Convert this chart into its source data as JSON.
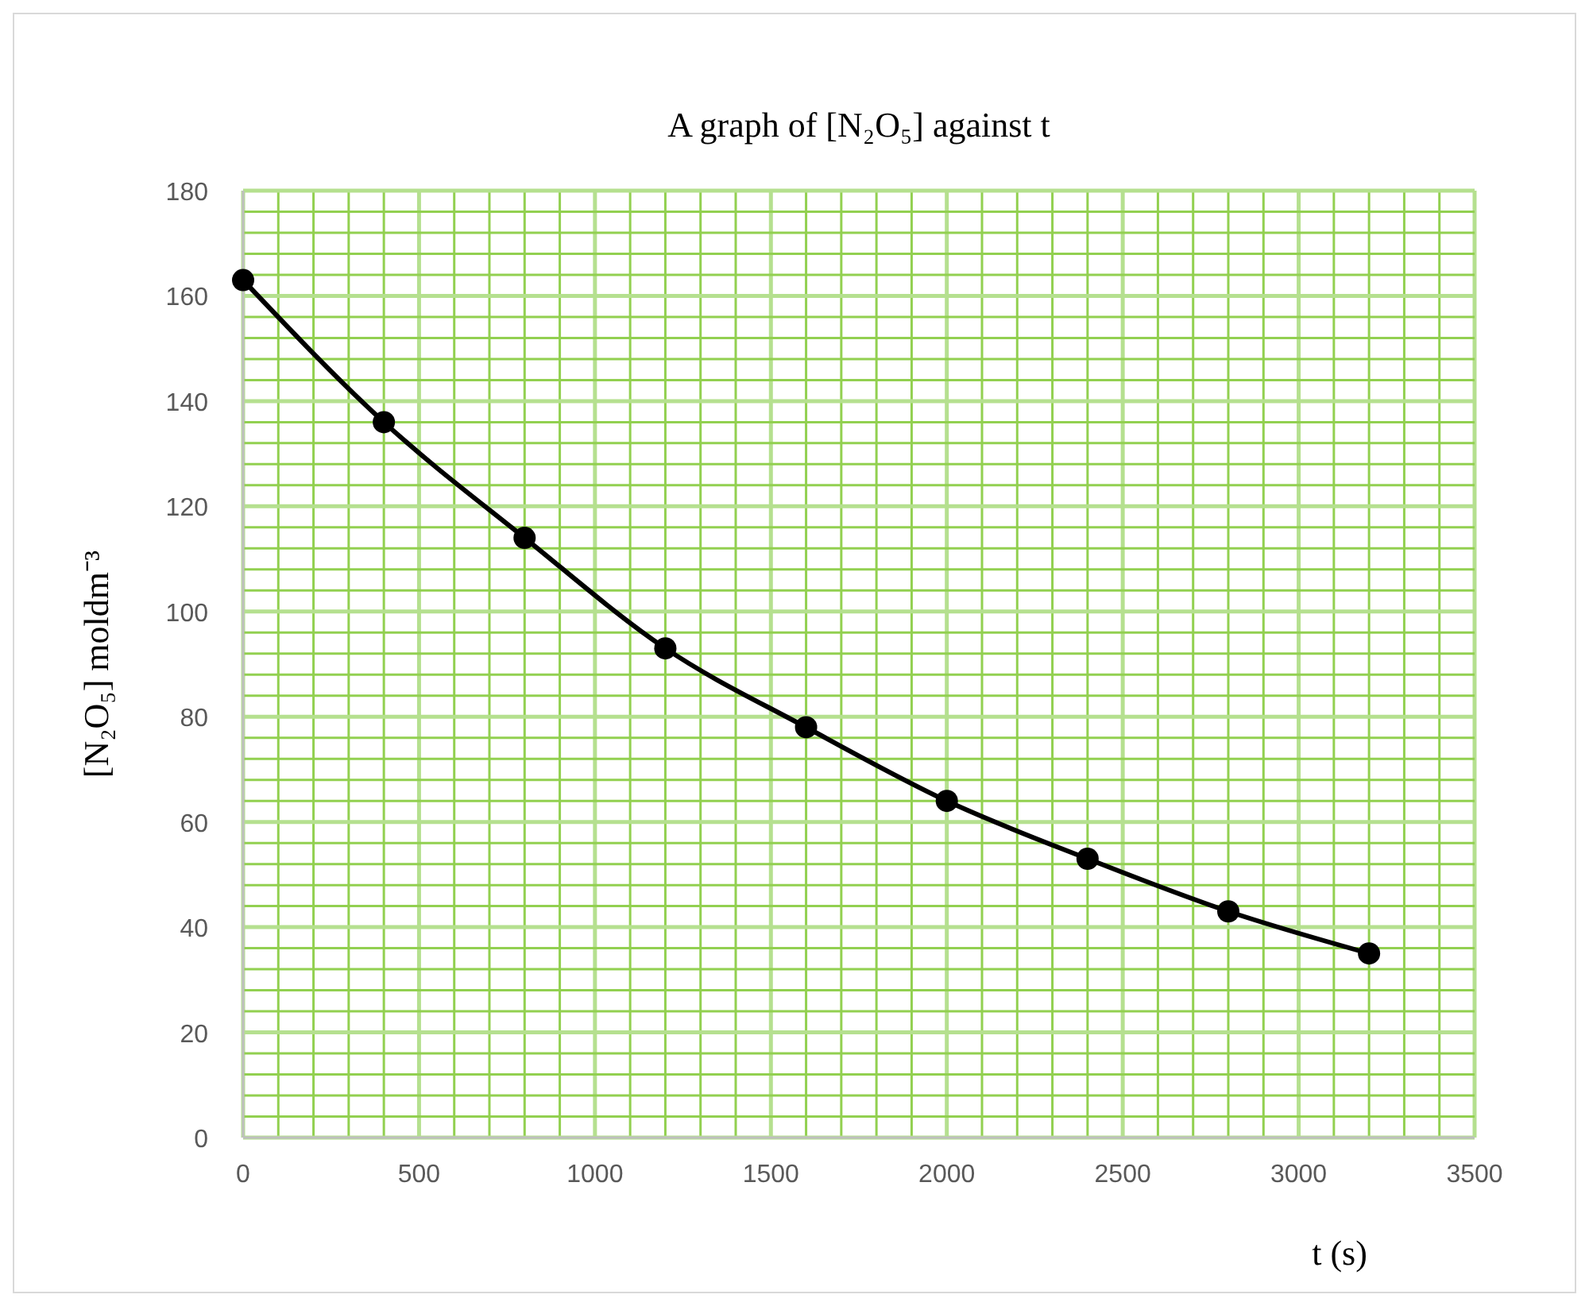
{
  "chart_data": {
    "type": "line",
    "title": "A graph of [N₂O₅] against t",
    "xlabel": "t (s)",
    "ylabel": "[N₂O₅] moldm⁻³",
    "x": [
      0,
      400,
      800,
      1200,
      1600,
      2000,
      2400,
      2800,
      3200
    ],
    "series": [
      {
        "color": "#000000",
        "values": [
          163,
          136,
          114,
          93,
          78,
          64,
          53,
          43,
          35
        ]
      }
    ],
    "xlim": [
      0,
      3500
    ],
    "xticks": [
      0,
      {
        "value": 100,
        "label": null
      },
      {
        "value": 200,
        "label": null
      },
      {
        "value": 300,
        "label": null
      },
      {
        "value": 400,
        "label": null
      },
      500,
      {
        "value": 600,
        "label": null
      },
      {
        "value": 700,
        "label": null
      },
      {
        "value": 800,
        "label": null
      },
      {
        "value": 900,
        "label": null
      },
      1000,
      {
        "value": 1100,
        "label": null
      },
      {
        "value": 1200,
        "label": null
      },
      {
        "value": 1300,
        "label": null
      },
      {
        "value": 1400,
        "label": null
      },
      1500,
      {
        "value": 1600,
        "label": null
      },
      {
        "value": 1700,
        "label": null
      },
      {
        "value": 1800,
        "label": null
      },
      {
        "value": 1900,
        "label": null
      },
      2000,
      {
        "value": 2100,
        "label": null
      },
      {
        "value": 2200,
        "label": null
      },
      {
        "value": 2300,
        "label": null
      },
      {
        "value": 2400,
        "label": null
      },
      2500,
      {
        "value": 2600,
        "label": null
      },
      {
        "value": 2700,
        "label": null
      },
      {
        "value": 2800,
        "label": null
      },
      {
        "value": 2900,
        "label": null
      },
      3000,
      {
        "value": 3100,
        "label": null
      },
      {
        "value": 3200,
        "label": null
      },
      {
        "value": 3300,
        "label": null
      },
      {
        "value": 3400,
        "label": null
      },
      3500
    ],
    "ylim": [
      0,
      180
    ],
    "yticks": [
      0,
      {
        "value": 4,
        "label": null
      },
      {
        "value": 8,
        "label": null
      },
      {
        "value": 12,
        "label": null
      },
      {
        "value": 16,
        "label": null
      },
      20,
      {
        "value": 24,
        "label": null
      },
      {
        "value": 28,
        "label": null
      },
      {
        "value": 32,
        "label": null
      },
      {
        "value": 36,
        "label": null
      },
      40,
      {
        "value": 44,
        "label": null
      },
      {
        "value": 48,
        "label": null
      },
      {
        "value": 52,
        "label": null
      },
      {
        "value": 56,
        "label": null
      },
      60,
      {
        "value": 64,
        "label": null
      },
      {
        "value": 68,
        "label": null
      },
      {
        "value": 72,
        "label": null
      },
      {
        "value": 76,
        "label": null
      },
      80,
      {
        "value": 84,
        "label": null
      },
      {
        "value": 88,
        "label": null
      },
      {
        "value": 92,
        "label": null
      },
      {
        "value": 96,
        "label": null
      },
      100,
      {
        "value": 104,
        "label": null
      },
      {
        "value": 108,
        "label": null
      },
      {
        "value": 112,
        "label": null
      },
      {
        "value": 116,
        "label": null
      },
      120,
      {
        "value": 124,
        "label": null
      },
      {
        "value": 128,
        "label": null
      },
      {
        "value": 132,
        "label": null
      },
      {
        "value": 136,
        "label": null
      },
      140,
      {
        "value": 144,
        "label": null
      },
      {
        "value": 148,
        "label": null
      },
      {
        "value": 152,
        "label": null
      },
      {
        "value": 156,
        "label": null
      },
      160,
      {
        "value": 164,
        "label": null
      },
      {
        "value": 168,
        "label": null
      },
      {
        "value": 172,
        "label": null
      },
      {
        "value": 176,
        "label": null
      },
      180
    ],
    "grid": true,
    "marker": "circle",
    "line_style": "solid"
  }
}
